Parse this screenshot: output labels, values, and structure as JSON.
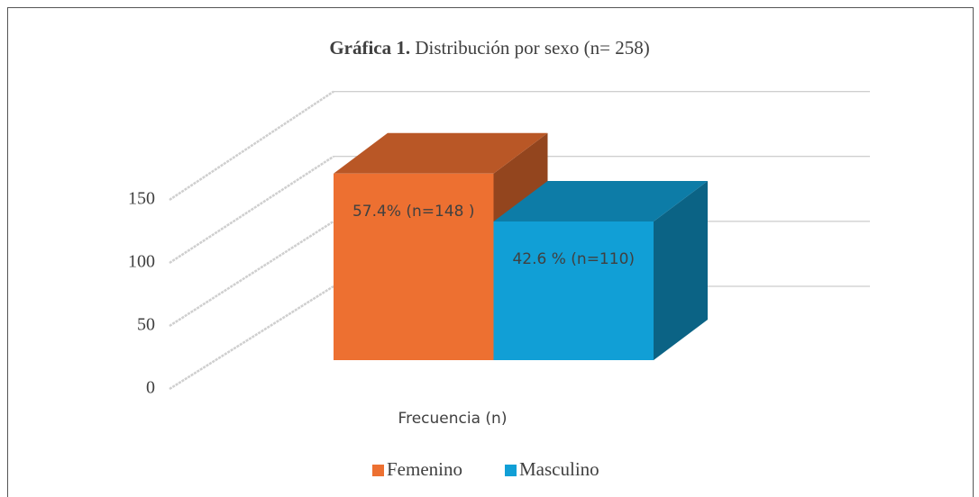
{
  "chart_data": {
    "type": "bar3d",
    "title_prefix": "Gráfica 1.",
    "title": "Distribución por sexo (n= 258)",
    "categories": [
      "Frecuencia (n)"
    ],
    "series": [
      {
        "name": "Femenino",
        "color": "#ED7031",
        "values": [
          148
        ],
        "value_labels": [
          "57.4% (n=148 )"
        ]
      },
      {
        "name": "Masculino",
        "color": "#119FD6",
        "values": [
          110
        ],
        "value_labels": [
          "42.6 % (n=110)"
        ]
      }
    ],
    "ylim": [
      0,
      150
    ],
    "yticks": [
      0,
      50,
      100,
      150
    ],
    "grid": true,
    "legend": "bottom"
  }
}
